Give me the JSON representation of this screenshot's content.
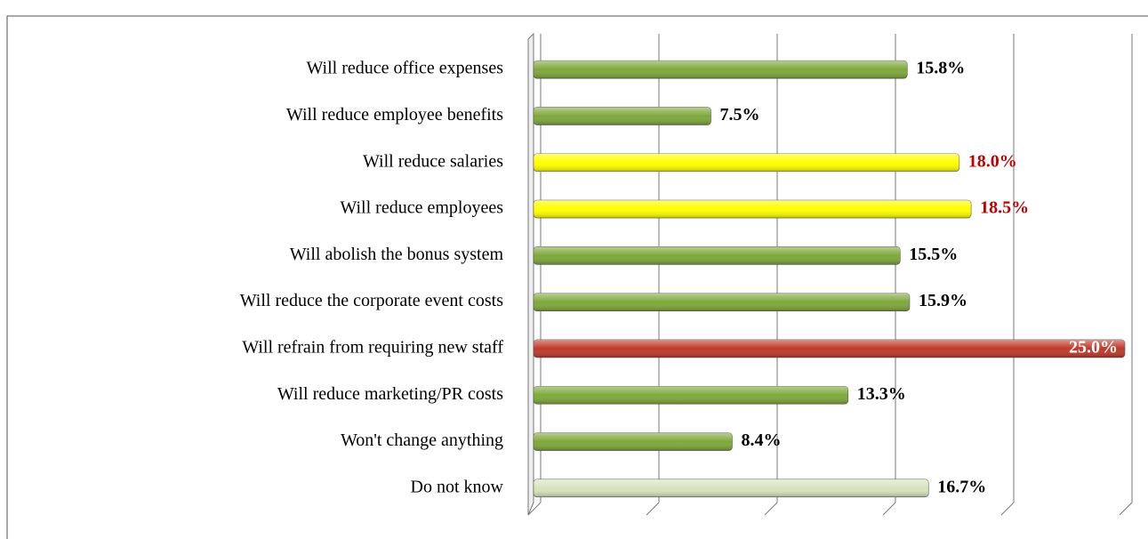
{
  "chart_data": {
    "type": "hbar",
    "categories": [
      "Will reduce office expenses",
      "Will reduce employee benefits",
      "Will reduce salaries",
      "Will reduce employees",
      "Will abolish the bonus system",
      "Will reduce the corporate event costs",
      "Will refrain from requiring new staff",
      "Will reduce marketing/PR costs",
      "Won't change anything",
      "Do not know"
    ],
    "values": [
      15.8,
      7.5,
      18.0,
      18.5,
      15.5,
      15.9,
      25.0,
      13.3,
      8.4,
      16.7
    ],
    "value_labels": [
      "15.8%",
      "7.5%",
      "18.0%",
      "18.5%",
      "15.5%",
      "15.9%",
      "25.0%",
      "13.3%",
      "8.4%",
      "16.7%"
    ],
    "colors": [
      "#7ea83a",
      "#7ea83a",
      "#ffff00",
      "#ffff00",
      "#7ea83a",
      "#7ea83a",
      "#c0392b",
      "#7ea83a",
      "#7ea83a",
      "#d8e4bc"
    ],
    "label_colors": [
      "#000000",
      "#000000",
      "#c00000",
      "#c00000",
      "#000000",
      "#000000",
      "#ffffff",
      "#000000",
      "#000000",
      "#000000"
    ],
    "xlim": [
      0,
      25
    ],
    "xticks": [
      0,
      5,
      10,
      15,
      20,
      25
    ],
    "grid": true
  }
}
